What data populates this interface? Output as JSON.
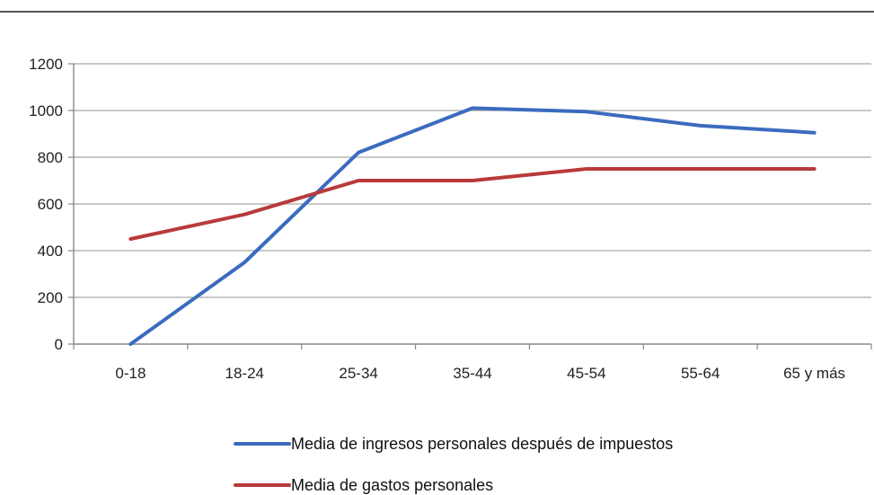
{
  "chart_data": {
    "type": "line",
    "title": "",
    "xlabel": "",
    "ylabel": "",
    "categories": [
      "0-18",
      "18-24",
      "25-34",
      "35-44",
      "45-54",
      "55-64",
      "65 y más"
    ],
    "ylim": [
      0,
      1200
    ],
    "yticks": [
      0,
      200,
      400,
      600,
      800,
      1000,
      1200
    ],
    "grid": true,
    "legend_position": "bottom",
    "series": [
      {
        "name": "Media de ingresos personales después de impuestos",
        "color": "#3a6bbf",
        "values": [
          0,
          350,
          820,
          1010,
          995,
          935,
          905
        ]
      },
      {
        "name": "Media de gastos personales",
        "color": "#b83a3a",
        "values": [
          450,
          555,
          700,
          700,
          750,
          750,
          750
        ]
      }
    ]
  }
}
